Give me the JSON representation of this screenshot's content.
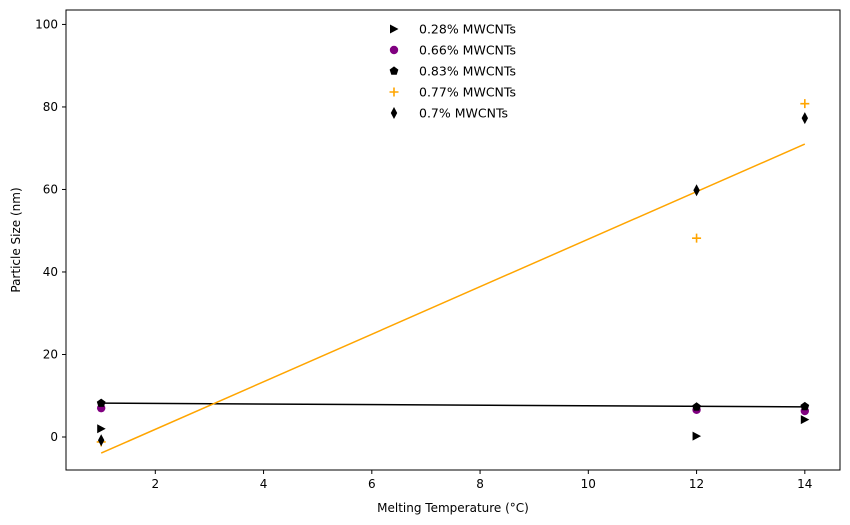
{
  "chart_data": {
    "type": "scatter",
    "xlabel": "Melting Temperature (°C)",
    "ylabel": "Particle Size (nm)",
    "xlim": [
      0.35,
      14.65
    ],
    "ylim": [
      -8,
      103.5
    ],
    "xticks": [
      2,
      4,
      6,
      8,
      10,
      12,
      14
    ],
    "yticks": [
      0,
      20,
      40,
      60,
      80,
      100
    ],
    "grid": false,
    "legend_position": "top-center",
    "series": [
      {
        "name": "0.28% MWCNTs",
        "marker": "triangle-right",
        "color": "#000000",
        "points": [
          {
            "x": 1,
            "y": 2
          },
          {
            "x": 12,
            "y": 0.2
          },
          {
            "x": 14,
            "y": 4.2
          }
        ]
      },
      {
        "name": "0.66% MWCNTs",
        "marker": "circle",
        "color": "#800080",
        "points": [
          {
            "x": 1,
            "y": 7
          },
          {
            "x": 12,
            "y": 6.6
          },
          {
            "x": 14,
            "y": 6.3
          }
        ]
      },
      {
        "name": "0.83% MWCNTs",
        "marker": "pentagon",
        "color": "#000000",
        "points": [
          {
            "x": 1,
            "y": 8.2
          },
          {
            "x": 12,
            "y": 7.3
          },
          {
            "x": 14,
            "y": 7.4
          }
        ]
      },
      {
        "name": "0.77% MWCNTs",
        "marker": "plus",
        "color": "#FFA500",
        "points": [
          {
            "x": 1,
            "y": -1.2
          },
          {
            "x": 12,
            "y": 48.2
          },
          {
            "x": 14,
            "y": 80.8
          }
        ]
      },
      {
        "name": "0.7% MWCNTs",
        "marker": "thin-diamond",
        "color": "#000000",
        "points": [
          {
            "x": 1,
            "y": -0.8
          },
          {
            "x": 12,
            "y": 59.8
          },
          {
            "x": 14,
            "y": 77.3
          }
        ]
      }
    ],
    "trend_lines": [
      {
        "color": "#000000",
        "x": [
          1,
          14
        ],
        "y": [
          8.2,
          7.3
        ]
      },
      {
        "color": "#FFA500",
        "x": [
          1,
          14
        ],
        "y": [
          -3.9,
          71
        ]
      }
    ]
  }
}
